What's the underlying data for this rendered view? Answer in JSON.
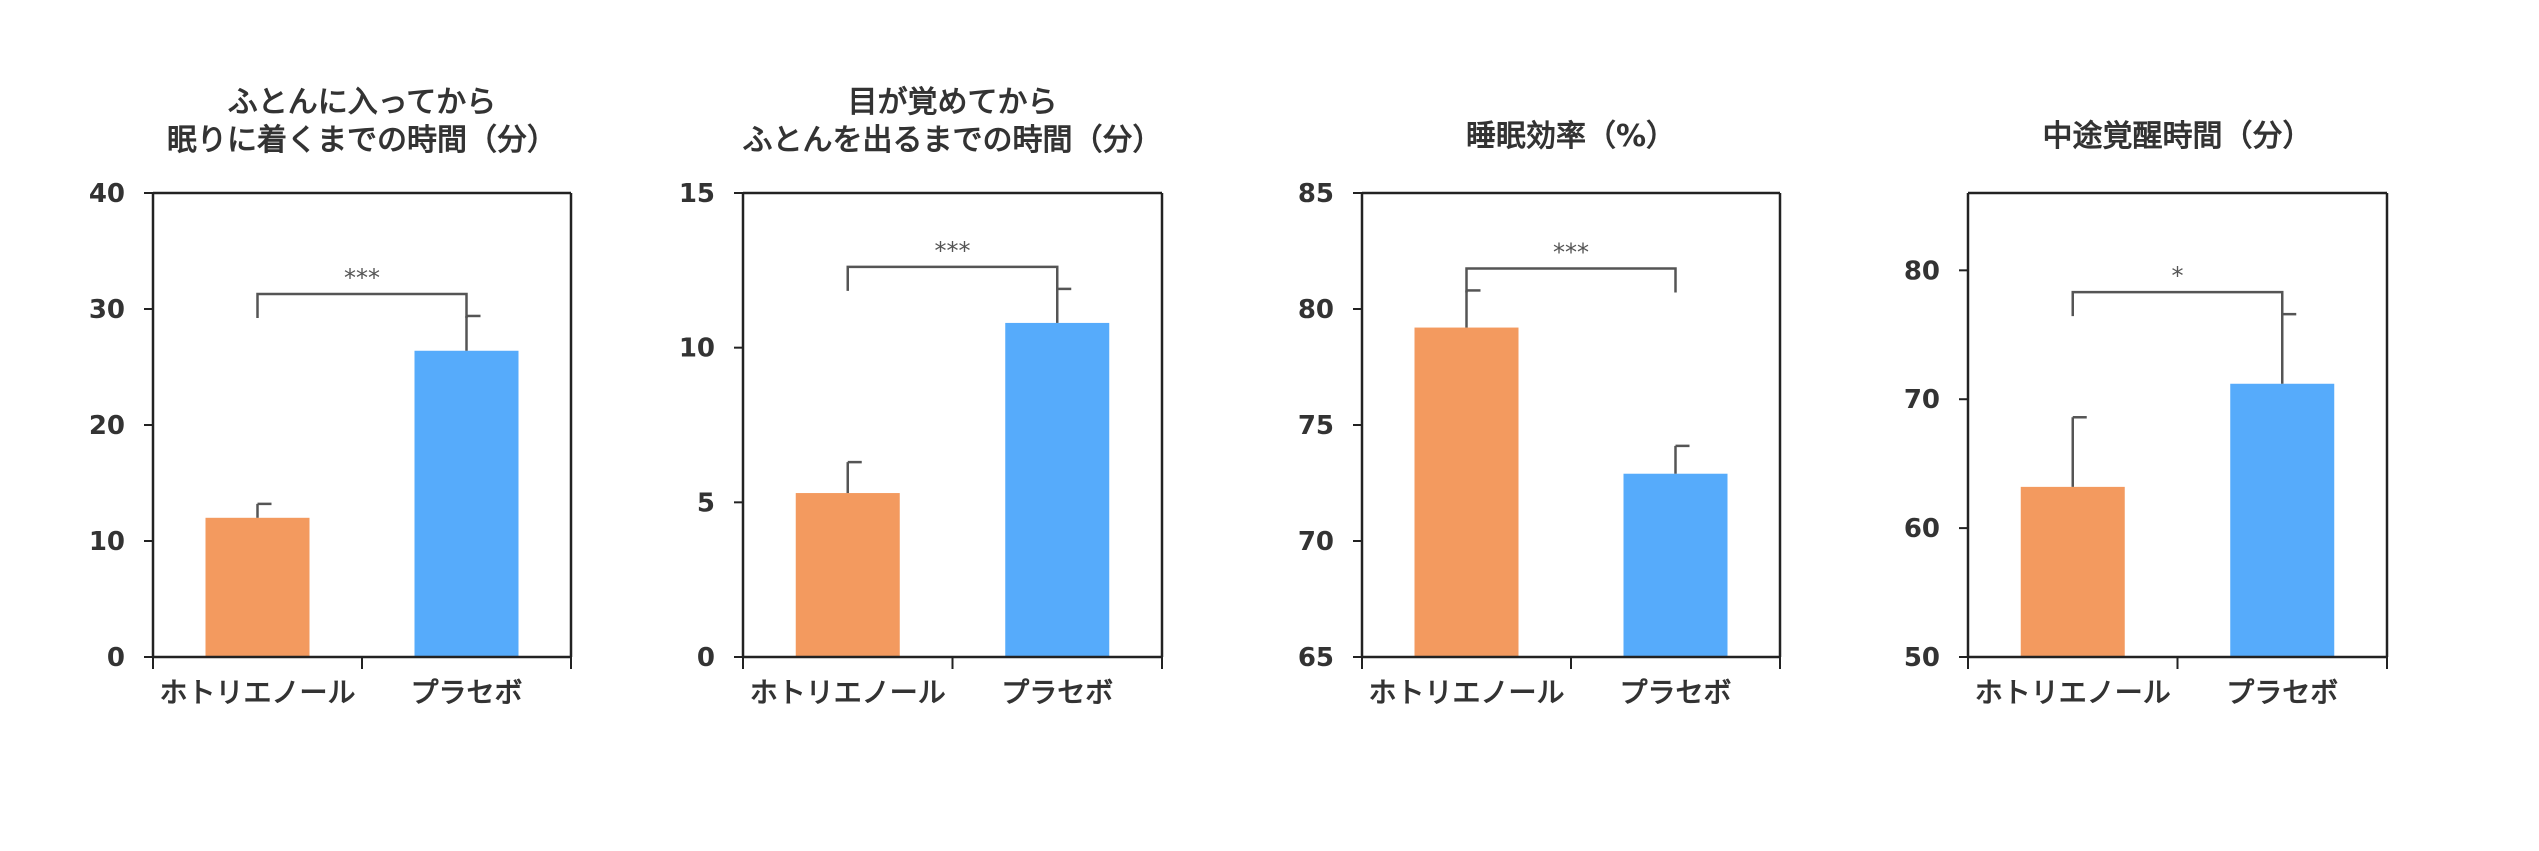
{
  "colors": {
    "treatment": "#F39A5F",
    "placebo": "#56ABFB",
    "axis": "#222222",
    "error_bar": "#555555",
    "bracket": "#555555"
  },
  "chart_data": [
    {
      "type": "bar",
      "title_lines": [
        "ふとんに入ってから",
        "眠りに着くまでの時間（分）"
      ],
      "categories": [
        "ホトリエノール",
        "プラセボ"
      ],
      "values": [
        12.0,
        26.4
      ],
      "errors": [
        1.2,
        3.0
      ],
      "ylim": [
        0,
        40
      ],
      "yticks": [
        0,
        10,
        20,
        30,
        40
      ],
      "grid": false,
      "significance": "***"
    },
    {
      "type": "bar",
      "title_lines": [
        "目が覚めてから",
        "ふとんを出るまでの時間（分）"
      ],
      "categories": [
        "ホトリエノール",
        "プラセボ"
      ],
      "values": [
        5.3,
        10.8
      ],
      "errors": [
        1.0,
        1.1
      ],
      "ylim": [
        0,
        15
      ],
      "yticks": [
        0,
        5,
        10,
        15
      ],
      "grid": false,
      "significance": "***"
    },
    {
      "type": "bar",
      "title_lines": [
        "睡眠効率（%）"
      ],
      "categories": [
        "ホトリエノール",
        "プラセボ"
      ],
      "values": [
        79.2,
        72.9
      ],
      "errors": [
        1.6,
        1.2
      ],
      "ylim": [
        65,
        85
      ],
      "yticks": [
        65,
        70,
        75,
        80,
        85
      ],
      "grid": false,
      "significance": "***"
    },
    {
      "type": "bar",
      "title_lines": [
        "中途覚醒時間（分）"
      ],
      "categories": [
        "ホトリエノール",
        "プラセボ"
      ],
      "values": [
        63.2,
        71.2
      ],
      "errors": [
        5.4,
        5.4
      ],
      "ylim": [
        50,
        86
      ],
      "yticks": [
        50,
        60,
        70,
        80
      ],
      "grid": false,
      "significance": "*"
    }
  ]
}
